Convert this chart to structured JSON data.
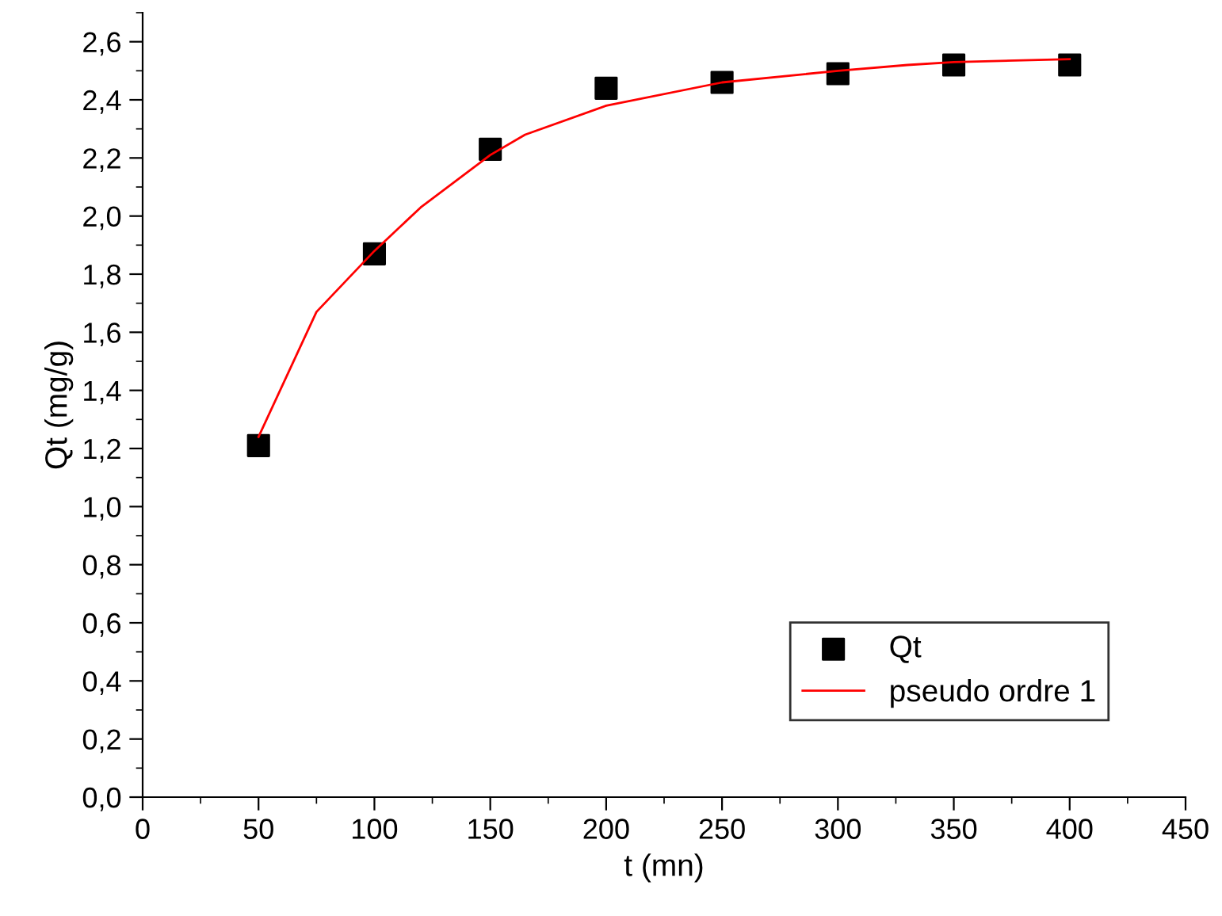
{
  "chart_data": {
    "type": "scatter",
    "xlabel": "t (mn)",
    "ylabel": "Qt (mg/g)",
    "xlim": [
      0,
      450
    ],
    "xticks": [
      0,
      50,
      100,
      150,
      200,
      250,
      300,
      350,
      400,
      450
    ],
    "ylim": [
      0,
      2.7
    ],
    "yticks": [
      {
        "value": 0,
        "label": "0,0"
      },
      {
        "value": 0.2,
        "label": "0,2"
      },
      {
        "value": 0.4,
        "label": "0,4"
      },
      {
        "value": 0.6,
        "label": "0,6"
      },
      {
        "value": 0.8,
        "label": "0,8"
      },
      {
        "value": 1.0,
        "label": "1,0"
      },
      {
        "value": 1.2,
        "label": "1,2"
      },
      {
        "value": 1.4,
        "label": "1,4"
      },
      {
        "value": 1.6,
        "label": "1,6"
      },
      {
        "value": 1.8,
        "label": "1,8"
      },
      {
        "value": 2.0,
        "label": "2,0"
      },
      {
        "value": 2.2,
        "label": "2,2"
      },
      {
        "value": 2.4,
        "label": "2,4"
      },
      {
        "value": 2.6,
        "label": "2,6"
      }
    ],
    "grid": false,
    "legend": "bottom right",
    "series": [
      {
        "name": "Qt",
        "marker": "square",
        "color": "#000000",
        "x": [
          50,
          100,
          150,
          200,
          250,
          300,
          350,
          400
        ],
        "values": [
          1.21,
          1.87,
          2.23,
          2.44,
          2.46,
          2.49,
          2.52,
          2.52
        ]
      },
      {
        "name": "pseudo ordre 1",
        "type": "line",
        "marker": "none",
        "line_style": "solid",
        "color": "#ff0000",
        "x": [
          50,
          75,
          100,
          120,
          150,
          165,
          200,
          250,
          300,
          330,
          350,
          400
        ],
        "values": [
          1.24,
          1.67,
          1.88,
          2.03,
          2.21,
          2.28,
          2.38,
          2.46,
          2.5,
          2.52,
          2.53,
          2.54
        ]
      }
    ]
  }
}
